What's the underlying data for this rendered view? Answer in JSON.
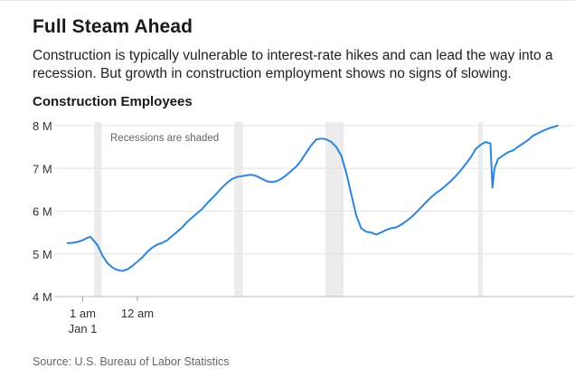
{
  "header": {
    "title": "Full Steam Ahead",
    "subtitle": "Construction is typically vulnerable to interest-rate hikes and can lead the way into a recession. But growth in construction employment shows no signs of slowing."
  },
  "footer": {
    "source": "Source: U.S. Bureau of Labor Statistics"
  },
  "chart_data": {
    "type": "line",
    "title": "Construction Employees",
    "annotation": "Recessions are shaded",
    "xlabel": "",
    "ylabel": "",
    "ylim": [
      4,
      8
    ],
    "y_ticks": [
      {
        "value": 4,
        "label": "4 M"
      },
      {
        "value": 5,
        "label": "5 M"
      },
      {
        "value": 6,
        "label": "6 M"
      },
      {
        "value": 7,
        "label": "7 M"
      },
      {
        "value": 8,
        "label": "8 M"
      }
    ],
    "x_ticks": [
      {
        "x": 3,
        "label": [
          "1 am",
          "Jan 1"
        ]
      },
      {
        "x": 14,
        "label": [
          "12 am"
        ]
      }
    ],
    "grid": true,
    "recessions": [
      [
        5.3,
        6.8
      ],
      [
        33.5,
        35.2
      ],
      [
        51.8,
        55.5
      ],
      [
        82.5,
        83.5
      ]
    ],
    "series_color": "#2b86d9",
    "series": [
      {
        "name": "",
        "points": [
          [
            0,
            5.25
          ],
          [
            1,
            5.26
          ],
          [
            2,
            5.28
          ],
          [
            3,
            5.32
          ],
          [
            4,
            5.38
          ],
          [
            4.5,
            5.4
          ],
          [
            5,
            5.34
          ],
          [
            6,
            5.2
          ],
          [
            7,
            4.95
          ],
          [
            8,
            4.78
          ],
          [
            9,
            4.68
          ],
          [
            10,
            4.62
          ],
          [
            11,
            4.6
          ],
          [
            12,
            4.64
          ],
          [
            13,
            4.72
          ],
          [
            14,
            4.82
          ],
          [
            15,
            4.92
          ],
          [
            16,
            5.05
          ],
          [
            17,
            5.15
          ],
          [
            18,
            5.22
          ],
          [
            19,
            5.26
          ],
          [
            20,
            5.32
          ],
          [
            21,
            5.42
          ],
          [
            22,
            5.52
          ],
          [
            23,
            5.62
          ],
          [
            24,
            5.75
          ],
          [
            25,
            5.85
          ],
          [
            26,
            5.95
          ],
          [
            27,
            6.05
          ],
          [
            28,
            6.18
          ],
          [
            29,
            6.3
          ],
          [
            30,
            6.42
          ],
          [
            31,
            6.55
          ],
          [
            32,
            6.66
          ],
          [
            33,
            6.75
          ],
          [
            34,
            6.8
          ],
          [
            35,
            6.82
          ],
          [
            36,
            6.84
          ],
          [
            37,
            6.85
          ],
          [
            38,
            6.82
          ],
          [
            39,
            6.76
          ],
          [
            40,
            6.7
          ],
          [
            41,
            6.68
          ],
          [
            42,
            6.7
          ],
          [
            43,
            6.76
          ],
          [
            44,
            6.85
          ],
          [
            45,
            6.95
          ],
          [
            46,
            7.05
          ],
          [
            47,
            7.2
          ],
          [
            48,
            7.38
          ],
          [
            49,
            7.55
          ],
          [
            50,
            7.68
          ],
          [
            51,
            7.7
          ],
          [
            52,
            7.68
          ],
          [
            53,
            7.62
          ],
          [
            54,
            7.5
          ],
          [
            55,
            7.3
          ],
          [
            56,
            6.9
          ],
          [
            57,
            6.4
          ],
          [
            58,
            5.9
          ],
          [
            59,
            5.6
          ],
          [
            60,
            5.52
          ],
          [
            61,
            5.5
          ],
          [
            62,
            5.45
          ],
          [
            63,
            5.5
          ],
          [
            64,
            5.56
          ],
          [
            65,
            5.6
          ],
          [
            66,
            5.62
          ],
          [
            67,
            5.68
          ],
          [
            68,
            5.76
          ],
          [
            69,
            5.85
          ],
          [
            70,
            5.96
          ],
          [
            71,
            6.08
          ],
          [
            72,
            6.2
          ],
          [
            73,
            6.32
          ],
          [
            74,
            6.42
          ],
          [
            75,
            6.5
          ],
          [
            76,
            6.6
          ],
          [
            77,
            6.7
          ],
          [
            78,
            6.82
          ],
          [
            79,
            6.95
          ],
          [
            80,
            7.1
          ],
          [
            81,
            7.25
          ],
          [
            82,
            7.45
          ],
          [
            83,
            7.55
          ],
          [
            84,
            7.62
          ],
          [
            85,
            7.58
          ],
          [
            85.4,
            6.55
          ],
          [
            85.8,
            7.0
          ],
          [
            86.5,
            7.22
          ],
          [
            87.5,
            7.3
          ],
          [
            88.5,
            7.38
          ],
          [
            89.5,
            7.42
          ],
          [
            90.5,
            7.5
          ],
          [
            91.5,
            7.58
          ],
          [
            92.5,
            7.66
          ],
          [
            93.5,
            7.76
          ],
          [
            94.5,
            7.82
          ],
          [
            95.5,
            7.88
          ],
          [
            97,
            7.95
          ],
          [
            98.5,
            8.0
          ]
        ]
      }
    ]
  }
}
